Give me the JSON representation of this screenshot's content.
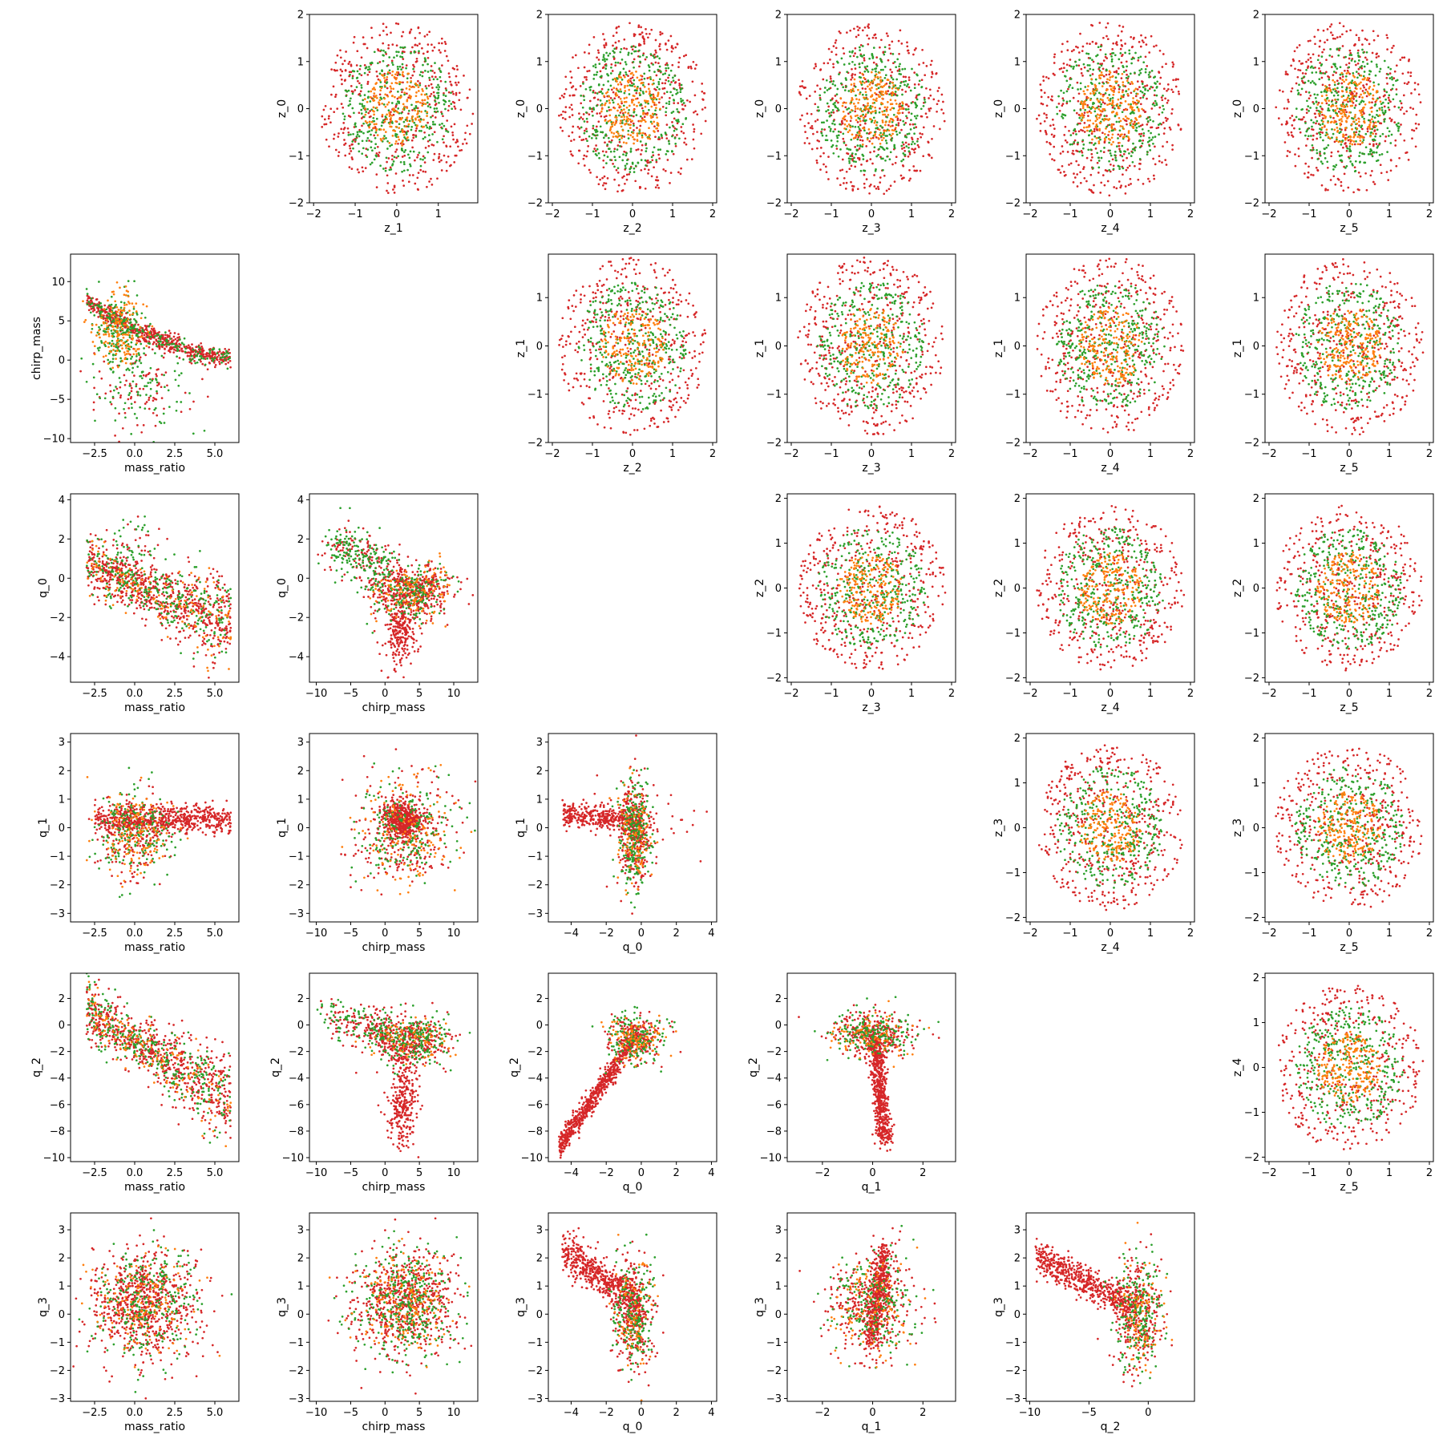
{
  "colors": {
    "red": "#d62728",
    "green": "#2ca02c",
    "orange": "#ff7f0e"
  },
  "chart_data": {
    "type": "scatter",
    "layout": "pair-plot grid (6 rows x 6 columns); upper triangle: z_i vs z_j, lower triangle: physical parameters",
    "series_colors": [
      "#d62728",
      "#2ca02c",
      "#ff7f0e"
    ],
    "grid": false,
    "legend": "none",
    "panels": [
      {
        "row": 0,
        "col": 1,
        "xlabel": "z_1",
        "ylabel": "z_0",
        "xlim": [
          -2.1,
          1.95
        ],
        "ylim": [
          -2.0,
          2.0
        ],
        "xticks": [
          -2,
          -1,
          0,
          1
        ],
        "yticks": [
          -2,
          -1,
          0,
          1,
          2
        ],
        "dist": "iso"
      },
      {
        "row": 0,
        "col": 2,
        "xlabel": "z_2",
        "ylabel": "z_0",
        "xlim": [
          -2.1,
          2.1
        ],
        "ylim": [
          -2.0,
          2.0
        ],
        "xticks": [
          -2,
          -1,
          0,
          1,
          2
        ],
        "yticks": [
          -2,
          -1,
          0,
          1,
          2
        ],
        "dist": "iso"
      },
      {
        "row": 0,
        "col": 3,
        "xlabel": "z_3",
        "ylabel": "z_0",
        "xlim": [
          -2.1,
          2.1
        ],
        "ylim": [
          -2.0,
          2.0
        ],
        "xticks": [
          -2,
          -1,
          0,
          1,
          2
        ],
        "yticks": [
          -2,
          -1,
          0,
          1,
          2
        ],
        "dist": "iso"
      },
      {
        "row": 0,
        "col": 4,
        "xlabel": "z_4",
        "ylabel": "z_0",
        "xlim": [
          -2.1,
          2.1
        ],
        "ylim": [
          -2.0,
          2.0
        ],
        "xticks": [
          -2,
          -1,
          0,
          1,
          2
        ],
        "yticks": [
          -2,
          -1,
          0,
          1,
          2
        ],
        "dist": "iso"
      },
      {
        "row": 0,
        "col": 5,
        "xlabel": "z_5",
        "ylabel": "z_0",
        "xlim": [
          -2.1,
          2.1
        ],
        "ylim": [
          -2.0,
          2.0
        ],
        "xticks": [
          -2,
          -1,
          0,
          1,
          2
        ],
        "yticks": [
          -2,
          -1,
          0,
          1,
          2
        ],
        "dist": "iso"
      },
      {
        "row": 1,
        "col": 0,
        "xlabel": "mass_ratio",
        "ylabel": "chirp_mass",
        "xlim": [
          -4.0,
          6.5
        ],
        "ylim": [
          -10.5,
          13.5
        ],
        "xticks": [
          -2.5,
          0.0,
          2.5,
          5.0
        ],
        "yticks": [
          -10,
          -5,
          0,
          5,
          10
        ],
        "tickfmt": 1,
        "dist": "mr_chirp"
      },
      {
        "row": 1,
        "col": 2,
        "xlabel": "z_2",
        "ylabel": "z_1",
        "xlim": [
          -2.1,
          2.1
        ],
        "ylim": [
          -2.0,
          1.9
        ],
        "xticks": [
          -2,
          -1,
          0,
          1,
          2
        ],
        "yticks": [
          -2,
          -1,
          0,
          1
        ],
        "dist": "iso"
      },
      {
        "row": 1,
        "col": 3,
        "xlabel": "z_3",
        "ylabel": "z_1",
        "xlim": [
          -2.1,
          2.1
        ],
        "ylim": [
          -2.0,
          1.9
        ],
        "xticks": [
          -2,
          -1,
          0,
          1,
          2
        ],
        "yticks": [
          -2,
          -1,
          0,
          1
        ],
        "dist": "iso"
      },
      {
        "row": 1,
        "col": 4,
        "xlabel": "z_4",
        "ylabel": "z_1",
        "xlim": [
          -2.1,
          2.1
        ],
        "ylim": [
          -2.0,
          1.9
        ],
        "xticks": [
          -2,
          -1,
          0,
          1,
          2
        ],
        "yticks": [
          -2,
          -1,
          0,
          1
        ],
        "dist": "iso"
      },
      {
        "row": 1,
        "col": 5,
        "xlabel": "z_5",
        "ylabel": "z_1",
        "xlim": [
          -2.1,
          2.1
        ],
        "ylim": [
          -2.0,
          1.9
        ],
        "xticks": [
          -2,
          -1,
          0,
          1,
          2
        ],
        "yticks": [
          -2,
          -1,
          0,
          1
        ],
        "dist": "iso"
      },
      {
        "row": 2,
        "col": 0,
        "xlabel": "mass_ratio",
        "ylabel": "q_0",
        "xlim": [
          -4.0,
          6.5
        ],
        "ylim": [
          -5.3,
          4.3
        ],
        "xticks": [
          -2.5,
          0.0,
          2.5,
          5.0
        ],
        "yticks": [
          -4,
          -2,
          0,
          2,
          4
        ],
        "tickfmt": 1,
        "dist": "mr_q0"
      },
      {
        "row": 2,
        "col": 1,
        "xlabel": "chirp_mass",
        "ylabel": "q_0",
        "xlim": [
          -11,
          13.5
        ],
        "ylim": [
          -5.3,
          4.3
        ],
        "xticks": [
          -10,
          -5,
          0,
          5,
          10
        ],
        "yticks": [
          -4,
          -2,
          0,
          2,
          4
        ],
        "dist": "ch_q0"
      },
      {
        "row": 2,
        "col": 3,
        "xlabel": "z_3",
        "ylabel": "z_2",
        "xlim": [
          -2.1,
          2.1
        ],
        "ylim": [
          -2.1,
          2.1
        ],
        "xticks": [
          -2,
          -1,
          0,
          1,
          2
        ],
        "yticks": [
          -2,
          -1,
          0,
          1,
          2
        ],
        "dist": "iso"
      },
      {
        "row": 2,
        "col": 4,
        "xlabel": "z_4",
        "ylabel": "z_2",
        "xlim": [
          -2.1,
          2.1
        ],
        "ylim": [
          -2.1,
          2.1
        ],
        "xticks": [
          -2,
          -1,
          0,
          1,
          2
        ],
        "yticks": [
          -2,
          -1,
          0,
          1,
          2
        ],
        "dist": "iso"
      },
      {
        "row": 2,
        "col": 5,
        "xlabel": "z_5",
        "ylabel": "z_2",
        "xlim": [
          -2.1,
          2.1
        ],
        "ylim": [
          -2.1,
          2.1
        ],
        "xticks": [
          -2,
          -1,
          0,
          1,
          2
        ],
        "yticks": [
          -2,
          -1,
          0,
          1,
          2
        ],
        "dist": "iso"
      },
      {
        "row": 3,
        "col": 0,
        "xlabel": "mass_ratio",
        "ylabel": "q_1",
        "xlim": [
          -4.0,
          6.5
        ],
        "ylim": [
          -3.3,
          3.3
        ],
        "xticks": [
          -2.5,
          0.0,
          2.5,
          5.0
        ],
        "yticks": [
          -3,
          -2,
          -1,
          0,
          1,
          2,
          3
        ],
        "tickfmt": 1,
        "dist": "mr_q1"
      },
      {
        "row": 3,
        "col": 1,
        "xlabel": "chirp_mass",
        "ylabel": "q_1",
        "xlim": [
          -11,
          13.5
        ],
        "ylim": [
          -3.3,
          3.3
        ],
        "xticks": [
          -10,
          -5,
          0,
          5,
          10
        ],
        "yticks": [
          -3,
          -2,
          -1,
          0,
          1,
          2,
          3
        ],
        "dist": "ch_q1"
      },
      {
        "row": 3,
        "col": 2,
        "xlabel": "q_0",
        "ylabel": "q_1",
        "xlim": [
          -5.3,
          4.3
        ],
        "ylim": [
          -3.3,
          3.3
        ],
        "xticks": [
          -4,
          -2,
          0,
          2,
          4
        ],
        "yticks": [
          -3,
          -2,
          -1,
          0,
          1,
          2,
          3
        ],
        "dist": "q0_q1"
      },
      {
        "row": 3,
        "col": 4,
        "xlabel": "z_4",
        "ylabel": "z_3",
        "xlim": [
          -2.1,
          2.1
        ],
        "ylim": [
          -2.1,
          2.1
        ],
        "xticks": [
          -2,
          -1,
          0,
          1,
          2
        ],
        "yticks": [
          -2,
          -1,
          0,
          1,
          2
        ],
        "dist": "iso"
      },
      {
        "row": 3,
        "col": 5,
        "xlabel": "z_5",
        "ylabel": "z_3",
        "xlim": [
          -2.1,
          2.1
        ],
        "ylim": [
          -2.1,
          2.1
        ],
        "xticks": [
          -2,
          -1,
          0,
          1,
          2
        ],
        "yticks": [
          -2,
          -1,
          0,
          1,
          2
        ],
        "dist": "iso"
      },
      {
        "row": 4,
        "col": 0,
        "xlabel": "mass_ratio",
        "ylabel": "q_2",
        "xlim": [
          -4.0,
          6.5
        ],
        "ylim": [
          -10.3,
          3.9
        ],
        "xticks": [
          -2.5,
          0.0,
          2.5,
          5.0
        ],
        "yticks": [
          -10,
          -8,
          -6,
          -4,
          -2,
          0,
          2
        ],
        "tickfmt": 1,
        "dist": "mr_q2"
      },
      {
        "row": 4,
        "col": 1,
        "xlabel": "chirp_mass",
        "ylabel": "q_2",
        "xlim": [
          -11,
          13.5
        ],
        "ylim": [
          -10.3,
          3.9
        ],
        "xticks": [
          -10,
          -5,
          0,
          5,
          10
        ],
        "yticks": [
          -10,
          -8,
          -6,
          -4,
          -2,
          0,
          2
        ],
        "dist": "ch_q2"
      },
      {
        "row": 4,
        "col": 2,
        "xlabel": "q_0",
        "ylabel": "q_2",
        "xlim": [
          -5.3,
          4.3
        ],
        "ylim": [
          -10.3,
          3.9
        ],
        "xticks": [
          -4,
          -2,
          0,
          2,
          4
        ],
        "yticks": [
          -10,
          -8,
          -6,
          -4,
          -2,
          0,
          2
        ],
        "dist": "q0_q2"
      },
      {
        "row": 4,
        "col": 3,
        "xlabel": "q_1",
        "ylabel": "q_2",
        "xlim": [
          -3.4,
          3.3
        ],
        "ylim": [
          -10.3,
          3.9
        ],
        "xticks": [
          -2,
          0,
          2
        ],
        "yticks": [
          -10,
          -8,
          -6,
          -4,
          -2,
          0,
          2
        ],
        "dist": "q1_q2"
      },
      {
        "row": 4,
        "col": 5,
        "xlabel": "z_5",
        "ylabel": "z_4",
        "xlim": [
          -2.1,
          2.1
        ],
        "ylim": [
          -2.1,
          2.1
        ],
        "xticks": [
          -2,
          -1,
          0,
          1,
          2
        ],
        "yticks": [
          -2,
          -1,
          0,
          1,
          2
        ],
        "dist": "iso"
      },
      {
        "row": 5,
        "col": 0,
        "xlabel": "mass_ratio",
        "ylabel": "q_3",
        "xlim": [
          -4.0,
          6.5
        ],
        "ylim": [
          -3.1,
          3.6
        ],
        "xticks": [
          -2.5,
          0.0,
          2.5,
          5.0
        ],
        "yticks": [
          -3,
          -2,
          -1,
          0,
          1,
          2,
          3
        ],
        "tickfmt": 1,
        "dist": "mr_q3"
      },
      {
        "row": 5,
        "col": 1,
        "xlabel": "chirp_mass",
        "ylabel": "q_3",
        "xlim": [
          -11,
          13.5
        ],
        "ylim": [
          -3.1,
          3.6
        ],
        "xticks": [
          -10,
          -5,
          0,
          5,
          10
        ],
        "yticks": [
          -3,
          -2,
          -1,
          0,
          1,
          2,
          3
        ],
        "dist": "ch_q3"
      },
      {
        "row": 5,
        "col": 2,
        "xlabel": "q_0",
        "ylabel": "q_3",
        "xlim": [
          -5.3,
          4.3
        ],
        "ylim": [
          -3.1,
          3.6
        ],
        "xticks": [
          -4,
          -2,
          0,
          2,
          4
        ],
        "yticks": [
          -3,
          -2,
          -1,
          0,
          1,
          2,
          3
        ],
        "dist": "q0_q3"
      },
      {
        "row": 5,
        "col": 3,
        "xlabel": "q_1",
        "ylabel": "q_3",
        "xlim": [
          -3.4,
          3.3
        ],
        "ylim": [
          -3.1,
          3.6
        ],
        "xticks": [
          -2,
          0,
          2
        ],
        "yticks": [
          -3,
          -2,
          -1,
          0,
          1,
          2,
          3
        ],
        "dist": "q1_q3"
      },
      {
        "row": 5,
        "col": 4,
        "xlabel": "q_2",
        "ylabel": "q_3",
        "xlim": [
          -10.3,
          3.9
        ],
        "ylim": [
          -3.1,
          3.6
        ],
        "xticks": [
          -10,
          -5,
          0
        ],
        "yticks": [
          -3,
          -2,
          -1,
          0,
          1,
          2,
          3
        ],
        "dist": "q2_q3"
      }
    ]
  }
}
